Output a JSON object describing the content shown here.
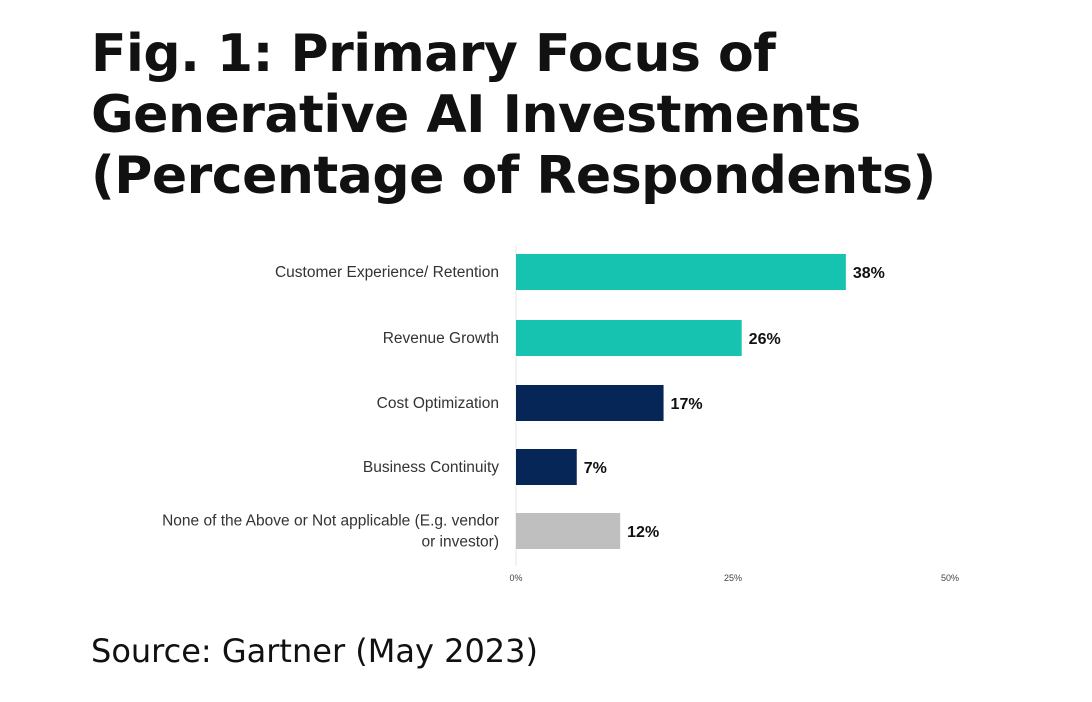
{
  "title": "Fig. 1: Primary Focus of Generative AI Investments (Percentage of Respondents)",
  "source": "Source: Gartner (May 2023)",
  "chart_data": {
    "type": "bar",
    "orientation": "horizontal",
    "title": "Fig. 1: Primary Focus of Generative AI Investments (Percentage of Respondents)",
    "xlabel": "",
    "ylabel": "",
    "xlim": [
      0,
      50
    ],
    "xticks": [
      "0%",
      "25%",
      "50%"
    ],
    "xtick_values": [
      0,
      25,
      50
    ],
    "grid": false,
    "categories": [
      [
        "Customer Experience/ Retention"
      ],
      [
        "Revenue Growth"
      ],
      [
        "Cost Optimization"
      ],
      [
        "Business Continuity"
      ],
      [
        "None of the Above or Not applicable (E.g. vendor",
        "or investor)"
      ]
    ],
    "values": [
      38,
      26,
      17,
      7,
      12
    ],
    "labels": [
      "38%",
      "26%",
      "17%",
      "7%",
      "12%"
    ],
    "colors": [
      "#15c3b0",
      "#15c3b0",
      "#062657",
      "#062657",
      "#bfbfbf"
    ]
  }
}
